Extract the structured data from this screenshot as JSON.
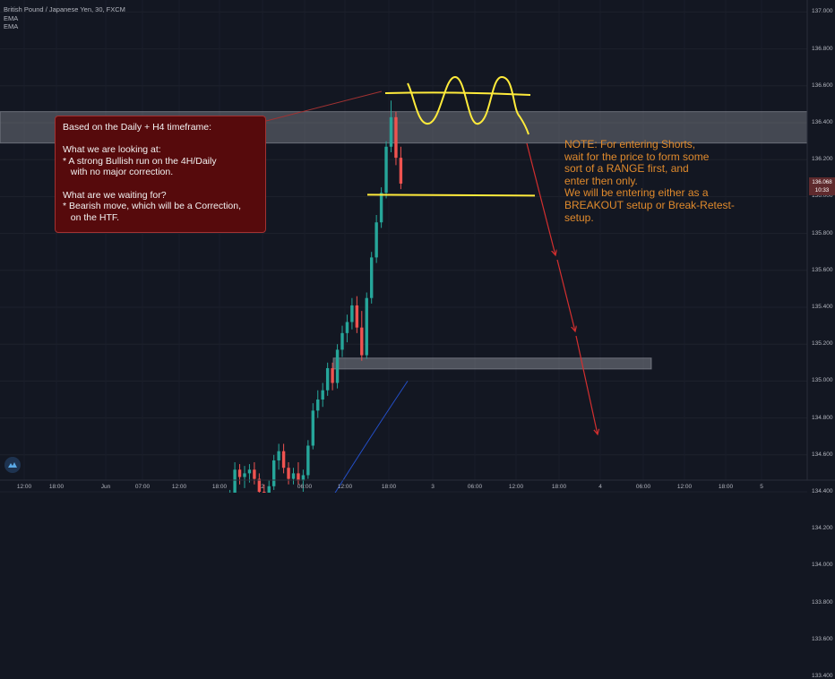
{
  "legend": {
    "symbol": "British Pound / Japanese Yen, 30, FXCM",
    "indicators": [
      "EMA",
      "EMA"
    ]
  },
  "note_box": {
    "lines": [
      "Based on the Daily + H4 timeframe:",
      "",
      "What we are looking at:",
      "* A strong Bullish run on the 4H/Daily",
      "   with no major correction.",
      "",
      "What are we waiting for?",
      "* Bearish move, which will be a Correction,",
      "   on the HTF."
    ]
  },
  "note_text": {
    "lines": [
      "NOTE: For entering Shorts,",
      "wait for the price to form some",
      "sort of a RANGE first, and",
      "enter then only.",
      "We will be entering either as a",
      "BREAKOUT setup or Break-Retest-",
      "setup."
    ]
  },
  "price_tag": {
    "price": "136.068",
    "timer": "10:33"
  },
  "colors": {
    "background": "#131722",
    "bull": "#26a69a",
    "bear": "#ef5350",
    "zone": "#9598a1",
    "range": "#ffeb3b",
    "arrow": "#d32f2f",
    "ema_fast": "#2962ff",
    "ema_slow": "#c9a227",
    "note_text": "#e08a2c"
  },
  "chart_data": {
    "type": "candlestick",
    "symbol": "British Pound / Japanese Yen",
    "timeframe": "30",
    "source": "FXCM",
    "y_ticks": [
      "137.000",
      "136.800",
      "136.600",
      "136.400",
      "136.200",
      "136.000",
      "135.800",
      "135.600",
      "135.400",
      "135.200",
      "135.000",
      "134.800",
      "134.600",
      "134.400",
      "134.200",
      "134.000",
      "133.800",
      "133.600",
      "133.400"
    ],
    "x_ticks": [
      "12:00",
      "18:00",
      "Jun",
      "07:00",
      "12:00",
      "18:00",
      "2",
      "06:00",
      "12:00",
      "18:00",
      "3",
      "06:00",
      "12:00",
      "18:00",
      "4",
      "06:00",
      "12:00",
      "18:00",
      "5"
    ],
    "ylim": [
      133.3,
      137.05
    ],
    "candles": [
      [
        133.28,
        133.34,
        133.26,
        133.31
      ],
      [
        133.31,
        133.36,
        133.28,
        133.33
      ],
      [
        133.33,
        133.5,
        133.31,
        133.46
      ],
      [
        133.46,
        133.66,
        133.43,
        133.62
      ],
      [
        133.62,
        133.68,
        133.53,
        133.56
      ],
      [
        133.56,
        133.59,
        133.31,
        133.36
      ],
      [
        133.36,
        133.4,
        133.25,
        133.29
      ],
      [
        133.29,
        133.36,
        133.27,
        133.33
      ],
      [
        133.33,
        133.37,
        133.26,
        133.3
      ],
      [
        133.3,
        133.35,
        133.24,
        133.27
      ],
      [
        133.27,
        133.45,
        133.26,
        133.41
      ],
      [
        133.41,
        133.62,
        133.39,
        133.59
      ],
      [
        133.59,
        133.62,
        133.42,
        133.46
      ],
      [
        133.46,
        133.5,
        133.31,
        133.34
      ],
      [
        133.34,
        133.38,
        133.27,
        133.32
      ],
      [
        133.32,
        133.44,
        133.3,
        133.4
      ],
      [
        133.4,
        133.48,
        133.35,
        133.44
      ],
      [
        133.44,
        133.66,
        133.42,
        133.63
      ],
      [
        133.63,
        133.74,
        133.58,
        133.7
      ],
      [
        133.7,
        133.83,
        133.66,
        133.8
      ],
      [
        133.8,
        133.95,
        133.77,
        133.91
      ],
      [
        133.91,
        134.05,
        133.88,
        134.02
      ],
      [
        134.02,
        134.23,
        133.99,
        134.2
      ],
      [
        134.2,
        134.29,
        134.14,
        134.25
      ],
      [
        134.25,
        134.31,
        134.17,
        134.21
      ],
      [
        134.21,
        134.33,
        134.19,
        134.29
      ],
      [
        134.29,
        134.36,
        134.24,
        134.32
      ],
      [
        134.32,
        134.41,
        134.28,
        134.38
      ],
      [
        134.38,
        134.56,
        134.35,
        134.52
      ],
      [
        134.52,
        134.55,
        134.44,
        134.48
      ],
      [
        134.48,
        134.54,
        134.42,
        134.5
      ],
      [
        134.5,
        134.55,
        134.45,
        134.52
      ],
      [
        134.52,
        134.56,
        134.44,
        134.47
      ],
      [
        134.47,
        134.5,
        134.37,
        134.4
      ],
      [
        134.4,
        134.44,
        134.3,
        134.33
      ],
      [
        134.33,
        134.46,
        134.31,
        134.43
      ],
      [
        134.43,
        134.6,
        134.41,
        134.57
      ],
      [
        134.57,
        134.66,
        134.52,
        134.62
      ],
      [
        134.62,
        134.66,
        134.5,
        134.53
      ],
      [
        134.53,
        134.56,
        134.44,
        134.47
      ],
      [
        134.47,
        134.53,
        134.44,
        134.5
      ],
      [
        134.5,
        134.56,
        134.44,
        134.46
      ],
      [
        134.46,
        134.52,
        134.4,
        134.49
      ],
      [
        134.49,
        134.68,
        134.47,
        134.65
      ],
      [
        134.65,
        134.88,
        134.63,
        134.84
      ],
      [
        134.84,
        134.95,
        134.8,
        134.9
      ],
      [
        134.9,
        134.99,
        134.86,
        134.95
      ],
      [
        134.95,
        135.1,
        134.92,
        135.07
      ],
      [
        135.07,
        135.1,
        134.95,
        134.99
      ],
      [
        134.99,
        135.2,
        134.96,
        135.17
      ],
      [
        135.17,
        135.3,
        135.13,
        135.26
      ],
      [
        135.26,
        135.36,
        135.21,
        135.32
      ],
      [
        135.32,
        135.45,
        135.28,
        135.41
      ],
      [
        135.41,
        135.46,
        135.26,
        135.29
      ],
      [
        135.29,
        135.38,
        135.11,
        135.14
      ],
      [
        135.14,
        135.48,
        135.12,
        135.45
      ],
      [
        135.45,
        135.7,
        135.42,
        135.67
      ],
      [
        135.67,
        135.9,
        135.64,
        135.86
      ],
      [
        135.86,
        136.05,
        135.83,
        136.02
      ],
      [
        136.02,
        136.3,
        135.99,
        136.27
      ],
      [
        136.27,
        136.52,
        136.24,
        136.43
      ],
      [
        136.43,
        136.46,
        136.17,
        136.21
      ],
      [
        136.21,
        136.27,
        136.04,
        136.07
      ]
    ],
    "candles_note": "each candle is [open, high, low, close], 30-minute bars, ordered left to right",
    "zones": [
      {
        "from": 136.29,
        "to": 136.46
      },
      {
        "from": 135.08,
        "to": 135.11
      },
      {
        "from": 133.57,
        "to": 133.61
      }
    ],
    "range_box": {
      "top": 136.56,
      "bottom": 136.01
    },
    "ema_fast": [
      134.0,
      135.0
    ],
    "ema_slow": [
      133.32,
      133.55
    ],
    "grid": true,
    "legend_position": "top-left"
  }
}
